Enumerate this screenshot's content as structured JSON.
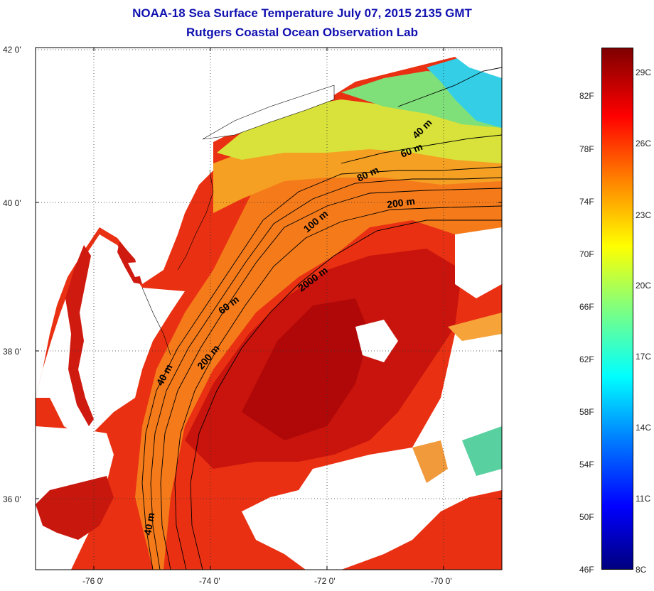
{
  "title_line1": "NOAA-18 Sea Surface Temperature July 07, 2015 2135 GMT",
  "title_line2": "Rutgers Coastal Ocean Observation Lab",
  "lat_labels": [
    "42 0'",
    "40 0'",
    "38 0'",
    "36 0'"
  ],
  "lon_labels": [
    "-76 0'",
    "-74 0'",
    "-72 0'",
    "-70 0'"
  ],
  "contour_labels": [
    "40 m",
    "60 m",
    "80 m",
    "200 m",
    "100 m",
    "2000 m",
    "60 m",
    "200 m",
    "40 m",
    "40 m"
  ],
  "colorbar": {
    "fahrenheit": [
      "82F",
      "78F",
      "74F",
      "70F",
      "66F",
      "62F",
      "58F",
      "54F",
      "50F",
      "46F"
    ],
    "celsius": [
      "29C",
      "26C",
      "23C",
      "20C",
      "17C",
      "14C",
      "11C",
      "8C"
    ]
  },
  "colors": {
    "title": "#1010b0",
    "land": "#ffffff",
    "warm_water": "#e8200a",
    "gulf_stream": "#c00000",
    "shelf_water": "#f58a1e",
    "cool_water": "#39d2e0"
  }
}
